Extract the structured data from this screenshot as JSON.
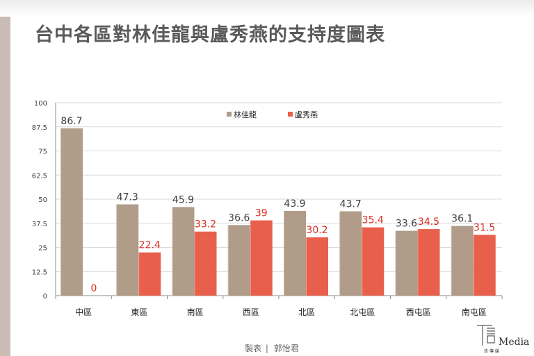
{
  "title": "台中各區對林佳龍與盧秀燕的支持度圖表",
  "credit": {
    "label": "製表",
    "separator": "|",
    "author": "郭怡君"
  },
  "logo": {
    "text": "Media",
    "subtext": "信 傳 媒"
  },
  "colors": {
    "lin": "#b09c88",
    "lu": "#e8604c",
    "lu_label": "#d92c20",
    "grid": "#d9d9d9",
    "axis": "#8c8c8c",
    "text": "#404040"
  },
  "chart_data": {
    "type": "bar",
    "categories": [
      "中區",
      "東區",
      "南區",
      "西區",
      "北區",
      "北屯區",
      "西屯區",
      "南屯區"
    ],
    "series": [
      {
        "name": "林佳龍",
        "values": [
          86.7,
          47.3,
          45.9,
          36.6,
          43.9,
          43.7,
          33.6,
          36.1
        ]
      },
      {
        "name": "盧秀燕",
        "values": [
          0,
          22.4,
          33.2,
          39,
          30.2,
          35.4,
          34.5,
          31.5
        ]
      }
    ],
    "ylim": [
      0,
      100
    ],
    "yticks": [
      "0",
      "12.5",
      "25",
      "37.5",
      "50",
      "62.5",
      "75",
      "87.5",
      "100"
    ],
    "grid": true,
    "legend": "top-center"
  }
}
